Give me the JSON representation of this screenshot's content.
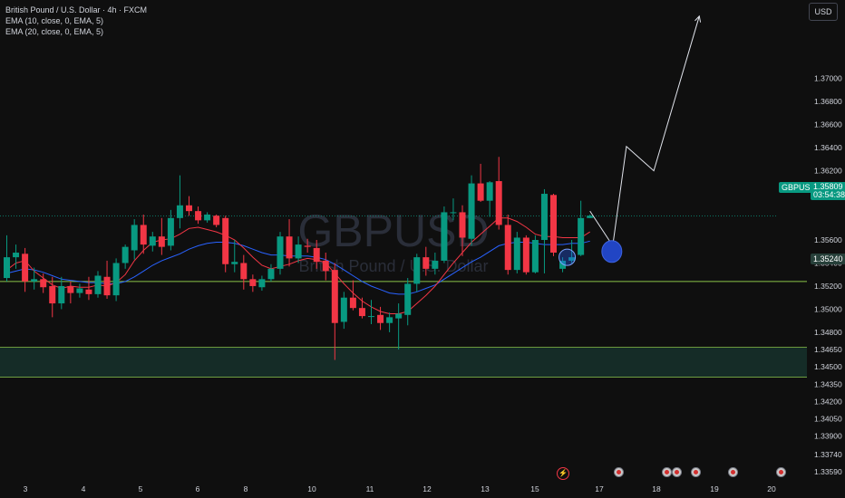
{
  "legend": {
    "symbol": "British Pound / U.S. Dollar · 4h · FXCM",
    "ema1": "EMA (10, close, 0, EMA, 5)",
    "ema2": "EMA (20, close, 0, EMA, 5)"
  },
  "currency_button": "USD",
  "watermark": {
    "ticker": "GBPUSD",
    "name": "British Pound / U.S. Dollar"
  },
  "price_tag": {
    "symbol": "GBPUSD",
    "price": "1.35809",
    "countdown": "03:54:38",
    "color": "#089981"
  },
  "level_tag": {
    "price": "1.35240",
    "color": "#27403a"
  },
  "colors": {
    "up": "#089981",
    "down": "#f23645",
    "ema_fast": "#f23645",
    "ema_slow": "#2962ff",
    "level": "#8bc34a",
    "zone": "#16312c"
  },
  "chart_data": {
    "type": "candlestick",
    "symbol": "GBPUSD",
    "timeframe": "4h",
    "ylim": [
      1.3352,
      1.3768
    ],
    "y_ticks": [
      "1.37000",
      "1.36800",
      "1.36600",
      "1.36400",
      "1.36200",
      "1.36000",
      "1.35600",
      "1.35400",
      "1.35200",
      "1.35000",
      "1.34800",
      "1.34650",
      "1.34500",
      "1.34350",
      "1.34200",
      "1.34050",
      "1.33900",
      "1.33740",
      "1.33590"
    ],
    "x_labels": [
      "3",
      "4",
      "5",
      "6",
      "8",
      "10",
      "11",
      "12",
      "13",
      "15",
      "17",
      "18",
      "19",
      "20"
    ],
    "candles": [
      {
        "o": 1.3527,
        "h": 1.3564,
        "l": 1.3524,
        "c": 1.3545
      },
      {
        "o": 1.3545,
        "h": 1.3556,
        "l": 1.3535,
        "c": 1.3549
      },
      {
        "o": 1.3548,
        "h": 1.3553,
        "l": 1.3515,
        "c": 1.3524
      },
      {
        "o": 1.3524,
        "h": 1.3536,
        "l": 1.3517,
        "c": 1.3526
      },
      {
        "o": 1.3526,
        "h": 1.3531,
        "l": 1.3514,
        "c": 1.3519
      },
      {
        "o": 1.352,
        "h": 1.3528,
        "l": 1.3493,
        "c": 1.3505
      },
      {
        "o": 1.3505,
        "h": 1.3528,
        "l": 1.35,
        "c": 1.352
      },
      {
        "o": 1.352,
        "h": 1.3524,
        "l": 1.3505,
        "c": 1.3514
      },
      {
        "o": 1.3514,
        "h": 1.3522,
        "l": 1.351,
        "c": 1.3518
      },
      {
        "o": 1.3517,
        "h": 1.3528,
        "l": 1.3508,
        "c": 1.3513
      },
      {
        "o": 1.3513,
        "h": 1.3533,
        "l": 1.351,
        "c": 1.3529
      },
      {
        "o": 1.3528,
        "h": 1.3542,
        "l": 1.3509,
        "c": 1.3512
      },
      {
        "o": 1.3512,
        "h": 1.3544,
        "l": 1.3507,
        "c": 1.354
      },
      {
        "o": 1.354,
        "h": 1.3556,
        "l": 1.3535,
        "c": 1.3554
      },
      {
        "o": 1.3551,
        "h": 1.3578,
        "l": 1.3543,
        "c": 1.3573
      },
      {
        "o": 1.3573,
        "h": 1.3582,
        "l": 1.3548,
        "c": 1.3556
      },
      {
        "o": 1.3555,
        "h": 1.3567,
        "l": 1.355,
        "c": 1.3563
      },
      {
        "o": 1.3563,
        "h": 1.3579,
        "l": 1.3547,
        "c": 1.3554
      },
      {
        "o": 1.3555,
        "h": 1.3586,
        "l": 1.3551,
        "c": 1.3579
      },
      {
        "o": 1.3579,
        "h": 1.3616,
        "l": 1.357,
        "c": 1.359
      },
      {
        "o": 1.359,
        "h": 1.3598,
        "l": 1.3581,
        "c": 1.3585
      },
      {
        "o": 1.3585,
        "h": 1.3589,
        "l": 1.3574,
        "c": 1.3577
      },
      {
        "o": 1.3577,
        "h": 1.3584,
        "l": 1.3575,
        "c": 1.3582
      },
      {
        "o": 1.3581,
        "h": 1.3582,
        "l": 1.3571,
        "c": 1.3573
      },
      {
        "o": 1.3579,
        "h": 1.3581,
        "l": 1.3532,
        "c": 1.3539
      },
      {
        "o": 1.3539,
        "h": 1.356,
        "l": 1.3532,
        "c": 1.3541
      },
      {
        "o": 1.354,
        "h": 1.3547,
        "l": 1.3517,
        "c": 1.3526
      },
      {
        "o": 1.3526,
        "h": 1.353,
        "l": 1.3515,
        "c": 1.352
      },
      {
        "o": 1.3519,
        "h": 1.3529,
        "l": 1.3516,
        "c": 1.3526
      },
      {
        "o": 1.3526,
        "h": 1.3539,
        "l": 1.3524,
        "c": 1.3535
      },
      {
        "o": 1.3535,
        "h": 1.3567,
        "l": 1.353,
        "c": 1.3563
      },
      {
        "o": 1.3563,
        "h": 1.3578,
        "l": 1.3537,
        "c": 1.3544
      },
      {
        "o": 1.3544,
        "h": 1.3563,
        "l": 1.354,
        "c": 1.3556
      },
      {
        "o": 1.3555,
        "h": 1.3561,
        "l": 1.3549,
        "c": 1.3554
      },
      {
        "o": 1.3553,
        "h": 1.356,
        "l": 1.3535,
        "c": 1.3541
      },
      {
        "o": 1.3542,
        "h": 1.3549,
        "l": 1.3525,
        "c": 1.3533
      },
      {
        "o": 1.3534,
        "h": 1.354,
        "l": 1.3456,
        "c": 1.3488
      },
      {
        "o": 1.3489,
        "h": 1.3515,
        "l": 1.3483,
        "c": 1.351
      },
      {
        "o": 1.351,
        "h": 1.3525,
        "l": 1.3499,
        "c": 1.3501
      },
      {
        "o": 1.3501,
        "h": 1.351,
        "l": 1.3492,
        "c": 1.3494
      },
      {
        "o": 1.3494,
        "h": 1.3508,
        "l": 1.3487,
        "c": 1.3494
      },
      {
        "o": 1.3495,
        "h": 1.3502,
        "l": 1.3482,
        "c": 1.3488
      },
      {
        "o": 1.3488,
        "h": 1.3497,
        "l": 1.348,
        "c": 1.3493
      },
      {
        "o": 1.3492,
        "h": 1.3505,
        "l": 1.3465,
        "c": 1.3496
      },
      {
        "o": 1.3495,
        "h": 1.3527,
        "l": 1.3486,
        "c": 1.3522
      },
      {
        "o": 1.3522,
        "h": 1.3548,
        "l": 1.3515,
        "c": 1.3545
      },
      {
        "o": 1.3545,
        "h": 1.3554,
        "l": 1.3529,
        "c": 1.3535
      },
      {
        "o": 1.3535,
        "h": 1.3549,
        "l": 1.353,
        "c": 1.3542
      },
      {
        "o": 1.3542,
        "h": 1.3589,
        "l": 1.354,
        "c": 1.3584
      },
      {
        "o": 1.3584,
        "h": 1.3596,
        "l": 1.3577,
        "c": 1.3584
      },
      {
        "o": 1.3584,
        "h": 1.359,
        "l": 1.3546,
        "c": 1.3562
      },
      {
        "o": 1.3561,
        "h": 1.3616,
        "l": 1.3555,
        "c": 1.3609
      },
      {
        "o": 1.3609,
        "h": 1.3626,
        "l": 1.3593,
        "c": 1.3594
      },
      {
        "o": 1.3594,
        "h": 1.3611,
        "l": 1.358,
        "c": 1.361
      },
      {
        "o": 1.3611,
        "h": 1.3632,
        "l": 1.3569,
        "c": 1.3573
      },
      {
        "o": 1.3573,
        "h": 1.3582,
        "l": 1.353,
        "c": 1.3534
      },
      {
        "o": 1.3534,
        "h": 1.3567,
        "l": 1.3531,
        "c": 1.3562
      },
      {
        "o": 1.3562,
        "h": 1.3564,
        "l": 1.353,
        "c": 1.3532
      },
      {
        "o": 1.3532,
        "h": 1.3564,
        "l": 1.3531,
        "c": 1.356
      },
      {
        "o": 1.356,
        "h": 1.3604,
        "l": 1.3531,
        "c": 1.36
      },
      {
        "o": 1.3599,
        "h": 1.36,
        "l": 1.3546,
        "c": 1.3549
      },
      {
        "o": 1.3535,
        "h": 1.3545,
        "l": 1.3532,
        "c": 1.3542
      },
      {
        "o": 1.3542,
        "h": 1.356,
        "l": 1.354,
        "c": 1.3545
      },
      {
        "o": 1.3547,
        "h": 1.3594,
        "l": 1.3546,
        "c": 1.3579
      },
      {
        "o": 1.3579,
        "h": 1.3582,
        "l": 1.3579,
        "c": 1.3581
      }
    ],
    "ema_fast": [
      1.3534,
      1.354,
      1.3542,
      1.3533,
      1.3527,
      1.3521,
      1.3518,
      1.352,
      1.3519,
      1.3519,
      1.3521,
      1.352,
      1.3523,
      1.353,
      1.3542,
      1.3551,
      1.3558,
      1.356,
      1.3561,
      1.3565,
      1.357,
      1.3571,
      1.3569,
      1.3567,
      1.3564,
      1.356,
      1.3553,
      1.3545,
      1.3538,
      1.3535,
      1.3537,
      1.3539,
      1.3542,
      1.3544,
      1.3543,
      1.354,
      1.3531,
      1.3522,
      1.3514,
      1.3507,
      1.3502,
      1.3498,
      1.3496,
      1.3496,
      1.3498,
      1.3505,
      1.3512,
      1.352,
      1.353,
      1.354,
      1.3549,
      1.3558,
      1.3565,
      1.3572,
      1.3579,
      1.3579,
      1.3576,
      1.3571,
      1.3565,
      1.3563,
      1.3563,
      1.3562,
      1.3562,
      1.3562,
      1.3567
    ],
    "ema_slow": [
      1.3531,
      1.3533,
      1.3535,
      1.3534,
      1.3532,
      1.3529,
      1.3526,
      1.3525,
      1.3524,
      1.3523,
      1.3523,
      1.3522,
      1.3522,
      1.3524,
      1.3528,
      1.3533,
      1.3538,
      1.3542,
      1.3545,
      1.3548,
      1.3552,
      1.3555,
      1.3557,
      1.3558,
      1.3558,
      1.3557,
      1.3555,
      1.3552,
      1.3549,
      1.3547,
      1.3547,
      1.3546,
      1.3546,
      1.3546,
      1.3545,
      1.3543,
      1.3539,
      1.3534,
      1.3529,
      1.3524,
      1.352,
      1.3517,
      1.3514,
      1.3513,
      1.3513,
      1.3515,
      1.3518,
      1.3521,
      1.3526,
      1.3531,
      1.3536,
      1.3541,
      1.3545,
      1.355,
      1.3555,
      1.3557,
      1.3558,
      1.3558,
      1.3557,
      1.3556,
      1.3556,
      1.3556,
      1.3557,
      1.3557,
      1.3559
    ],
    "horizontal_levels": [
      1.3524
    ],
    "last_price": 1.35809,
    "zone": [
      1.3467,
      1.3441
    ],
    "projection_path": [
      [
        64,
        1.3585
      ],
      [
        66.5,
        1.3555
      ],
      [
        68,
        1.3641
      ],
      [
        71,
        1.362
      ],
      [
        76,
        1.3754
      ]
    ],
    "circle_markers": [
      {
        "x": 61.5,
        "y": 1.3545,
        "style": "outline"
      },
      {
        "x": 66.4,
        "y": 1.355,
        "style": "filled"
      }
    ]
  }
}
